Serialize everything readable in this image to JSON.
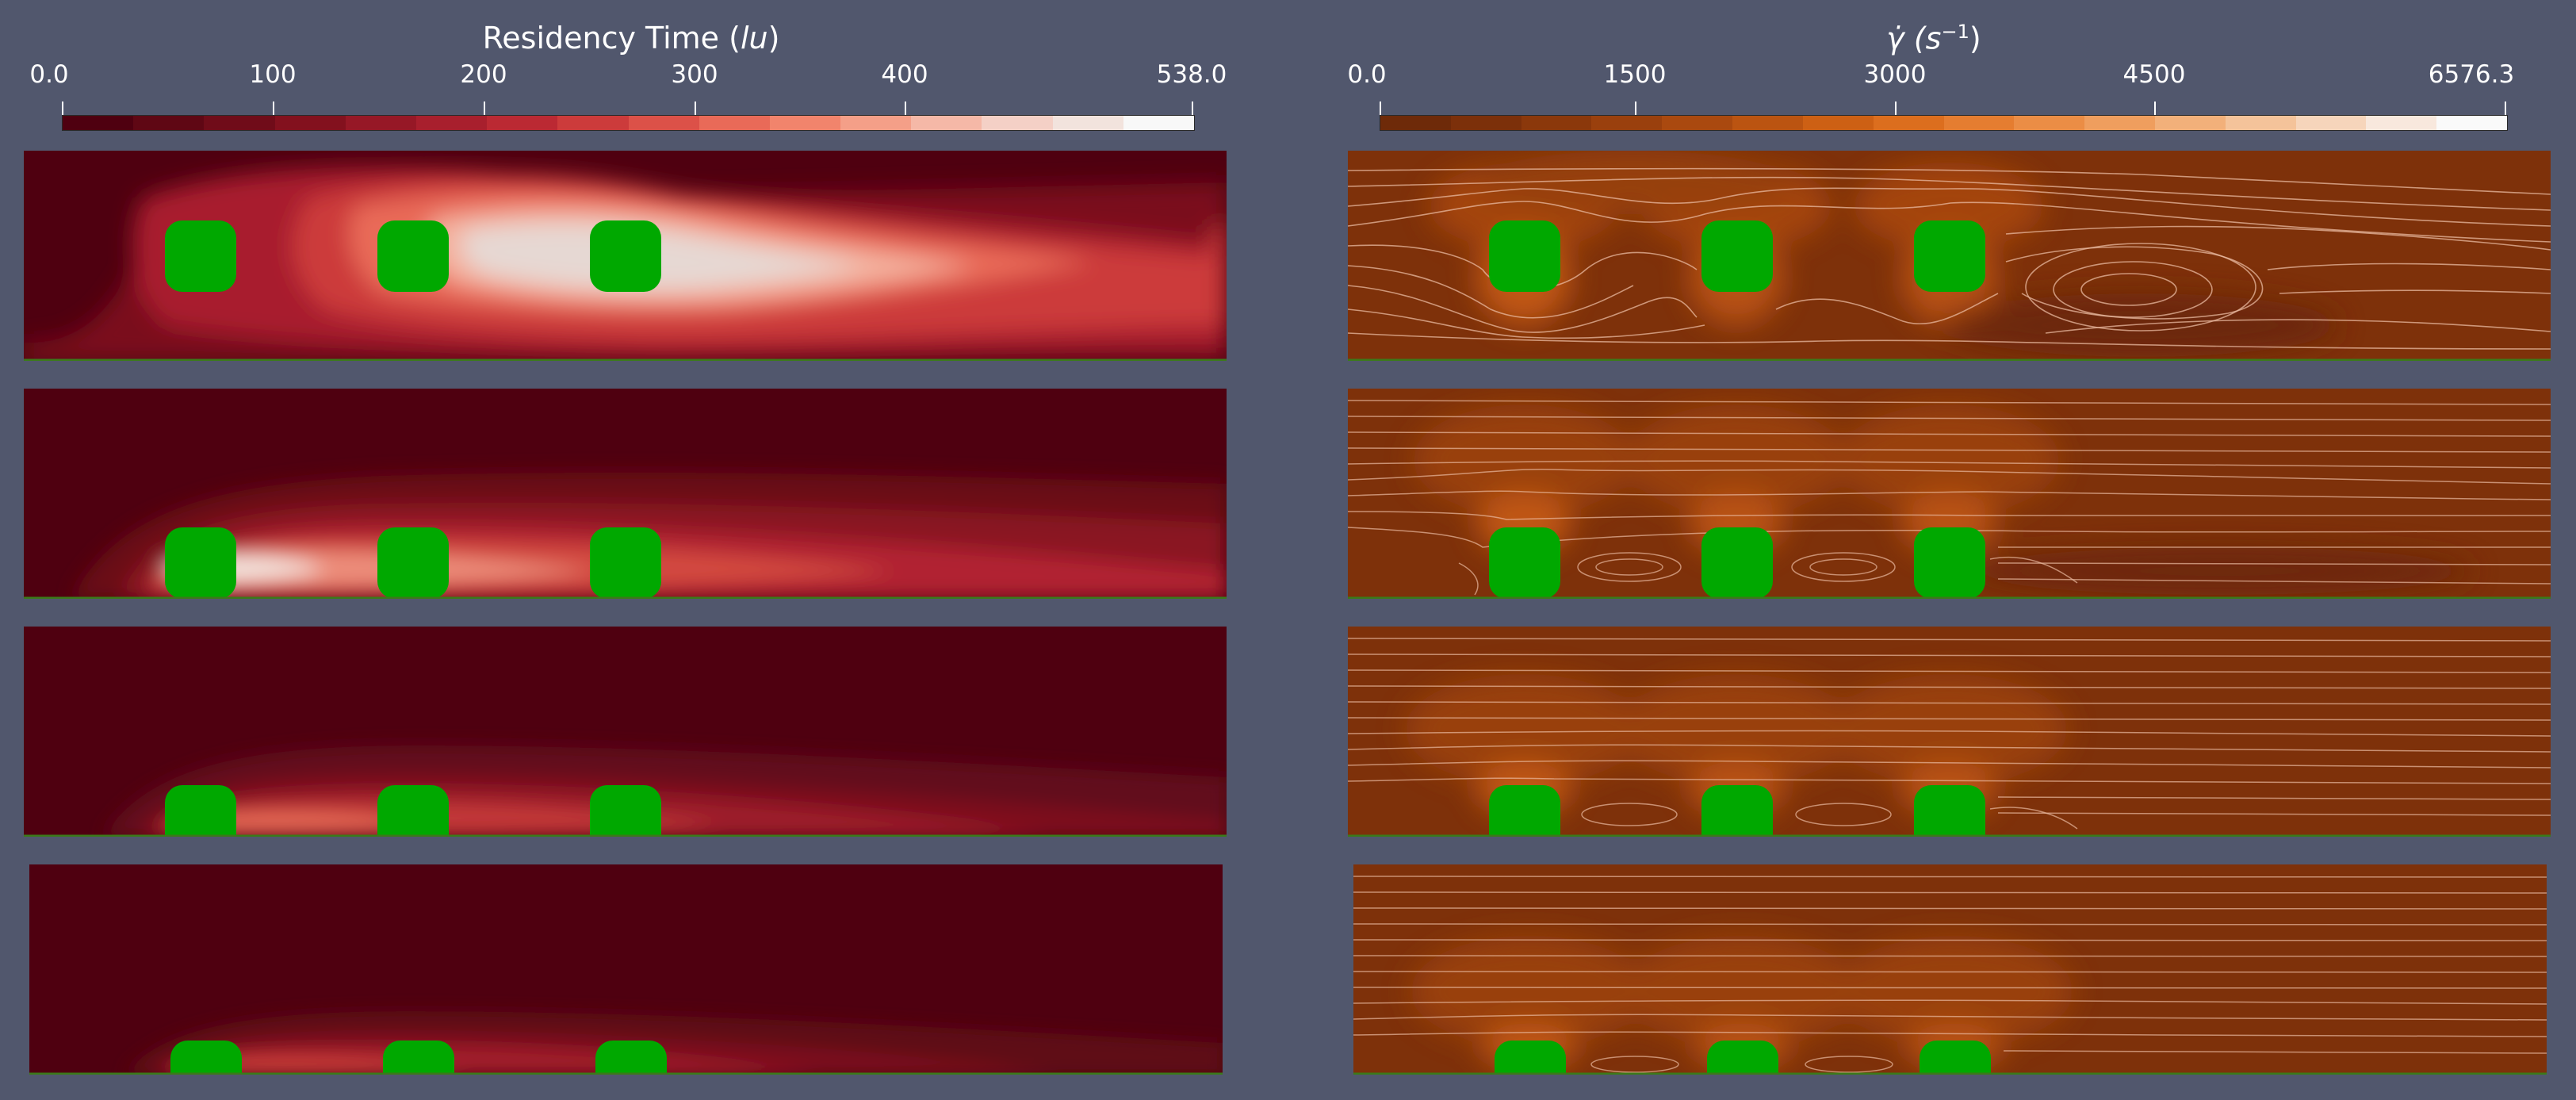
{
  "left_colorbar": {
    "title_text": "Residency Time (",
    "title_unit": "lu",
    "title_close": ")",
    "ticks": [
      "0.0",
      "100",
      "200",
      "300",
      "400",
      "538.0"
    ],
    "colors": [
      "#4f0010",
      "#5f0714",
      "#700c19",
      "#83111e",
      "#961826",
      "#a81f2d",
      "#bb2933",
      "#cc3b3b",
      "#dc5148",
      "#e96a58",
      "#f1846c",
      "#f49f88",
      "#f5b8a7",
      "#f4d0c6",
      "#f2e3dd",
      "#f8f8f8"
    ]
  },
  "right_colorbar": {
    "title_text": "γ̇ (s",
    "title_exponent": "−1",
    "title_close": ")",
    "ticks": [
      "0.0",
      "1500",
      "3000",
      "4500",
      "6576.3"
    ],
    "colors": [
      "#6e2a09",
      "#7c300a",
      "#8b380b",
      "#9a400d",
      "#aa490f",
      "#bb5411",
      "#cd6014",
      "#dc6e1e",
      "#e57d30",
      "#eb8d45",
      "#ef9e5e",
      "#f2b07a",
      "#f4c39a",
      "#f6d5bb",
      "#f8e8dd",
      "#fafafa"
    ]
  },
  "panels": {
    "rows": 4,
    "field_left": "residency time",
    "field_right": "shear rate with streamlines",
    "obstacle_color": "#00a800",
    "obstacles_per_row": 3
  }
}
